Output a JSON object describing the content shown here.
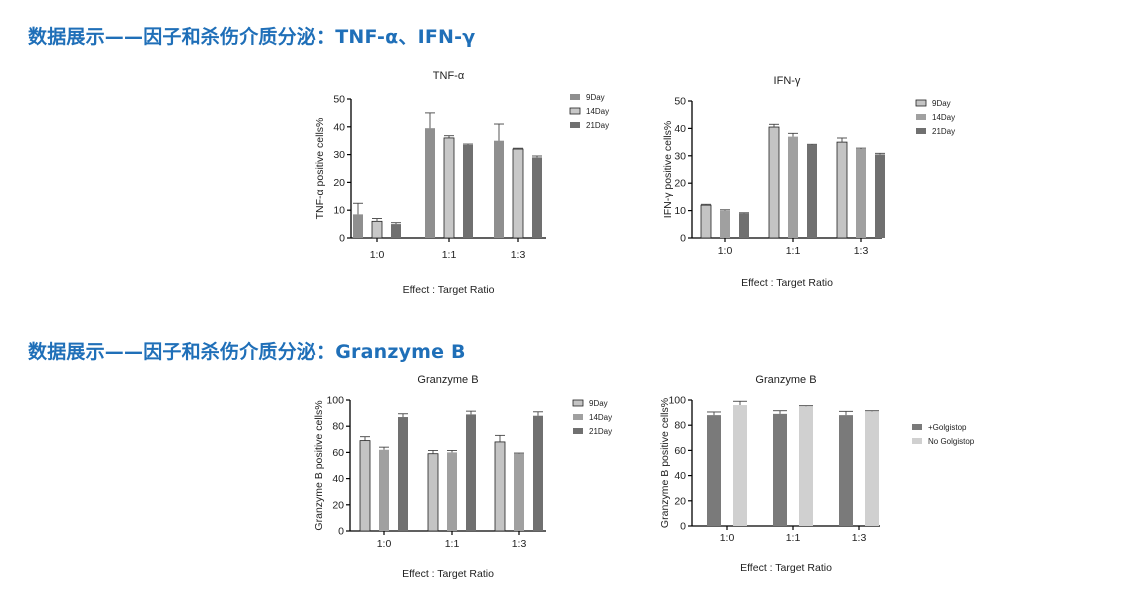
{
  "headings": {
    "top": "数据展示——因子和杀伤介质分泌：TNF-α、IFN-γ",
    "bottom": "数据展示——因子和杀伤介质分泌：Granzyme B"
  },
  "colors": {
    "heading": "#1f6fb8",
    "day9_light": "#c4c4c4",
    "day9_grey": "#8f8f8f",
    "day14_light": "#c8c8c8",
    "day14_grey": "#a0a0a0",
    "day21": "#707070",
    "golgistop": "#7a7a7a",
    "no_golgistop": "#d0d0d0"
  },
  "chart_data": [
    {
      "type": "bar",
      "title": "TNF-α",
      "xlabel": "Effect : Target Ratio",
      "ylabel": "TNF-α positive cells%",
      "categories": [
        "1:0",
        "1:1",
        "1:3"
      ],
      "ylim": [
        0,
        50
      ],
      "yticks": [
        "0",
        "10",
        "20",
        "30",
        "40",
        "50"
      ],
      "legend_position": "top-right",
      "series": [
        {
          "name": "9Day",
          "values": [
            8.5,
            39.5,
            35
          ],
          "errors": [
            4,
            5.5,
            6
          ],
          "color": "#8f8f8f"
        },
        {
          "name": "14Day",
          "values": [
            6,
            36,
            32
          ],
          "errors": [
            1,
            0.8,
            0.3
          ],
          "color": "#c8c8c8"
        },
        {
          "name": "21Day",
          "values": [
            5,
            33.5,
            29
          ],
          "errors": [
            0.5,
            0.3,
            0.5
          ],
          "color": "#707070"
        }
      ]
    },
    {
      "type": "bar",
      "title": "IFN-γ",
      "xlabel": "Effect : Target Ratio",
      "ylabel": "IFN-γ positive cells%",
      "categories": [
        "1:0",
        "1:1",
        "1:3"
      ],
      "ylim": [
        0,
        50
      ],
      "yticks": [
        "0",
        "10",
        "20",
        "30",
        "40",
        "50"
      ],
      "legend_position": "top-right",
      "series": [
        {
          "name": "9Day",
          "values": [
            12,
            40.5,
            35
          ],
          "errors": [
            0.3,
            1,
            1.5
          ],
          "color": "#c4c4c4"
        },
        {
          "name": "14Day",
          "values": [
            10,
            37,
            32.5
          ],
          "errors": [
            0.3,
            1.2,
            0.3
          ],
          "color": "#a0a0a0"
        },
        {
          "name": "21Day",
          "values": [
            9,
            34,
            30.5
          ],
          "errors": [
            0.2,
            0.2,
            0.4
          ],
          "color": "#707070"
        }
      ]
    },
    {
      "type": "bar",
      "title": "Granzyme B",
      "xlabel": "Effect : Target Ratio",
      "ylabel": "Granzyme B positive cells%",
      "categories": [
        "1:0",
        "1:1",
        "1:3"
      ],
      "ylim": [
        0,
        100
      ],
      "yticks": [
        "0",
        "20",
        "40",
        "60",
        "80",
        "100"
      ],
      "legend_position": "top-right",
      "series": [
        {
          "name": "9Day",
          "values": [
            69,
            59,
            68
          ],
          "errors": [
            3,
            2.5,
            5
          ],
          "color": "#c4c4c4"
        },
        {
          "name": "14Day",
          "values": [
            62,
            60,
            59
          ],
          "errors": [
            2,
            1.5,
            0.5
          ],
          "color": "#a0a0a0"
        },
        {
          "name": "21Day",
          "values": [
            87,
            89,
            88
          ],
          "errors": [
            2.5,
            2.5,
            3
          ],
          "color": "#707070"
        }
      ]
    },
    {
      "type": "bar",
      "title": "Granzyme B",
      "xlabel": "Effect : Target Ratio",
      "ylabel": "Granzyme B positive cells%",
      "categories": [
        "1:0",
        "1:1",
        "1:3"
      ],
      "ylim": [
        0,
        100
      ],
      "yticks": [
        "0",
        "20",
        "40",
        "60",
        "80",
        "100"
      ],
      "legend_position": "right",
      "series": [
        {
          "name": "+Golgistop",
          "values": [
            88,
            89,
            88
          ],
          "errors": [
            2.5,
            2.5,
            3
          ],
          "color": "#7a7a7a"
        },
        {
          "name": "No Golgistop",
          "values": [
            96,
            95,
            91
          ],
          "errors": [
            3,
            0.5,
            0.5
          ],
          "color": "#d0d0d0"
        }
      ]
    }
  ]
}
